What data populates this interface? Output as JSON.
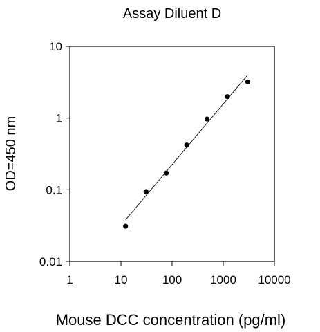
{
  "chart_data": {
    "type": "scatter",
    "title": "Assay Diluent D",
    "xlabel": "Mouse DCC concentration (pg/ml)",
    "ylabel": "OD=450 nm",
    "xscale": "log",
    "yscale": "log",
    "xlim": [
      1,
      10000
    ],
    "ylim": [
      0.01,
      10
    ],
    "xticks": [
      "1",
      "10",
      "100",
      "1000",
      "10000"
    ],
    "yticks": [
      "10",
      "1",
      "0.1",
      "0.01"
    ],
    "grid": false,
    "legend": "none",
    "series": [
      {
        "points": [
          {
            "x": 12.3,
            "y": 0.031
          },
          {
            "x": 30.9,
            "y": 0.094
          },
          {
            "x": 77.2,
            "y": 0.171
          },
          {
            "x": 193,
            "y": 0.42
          },
          {
            "x": 482,
            "y": 0.97
          },
          {
            "x": 1205,
            "y": 1.99
          },
          {
            "x": 3012,
            "y": 3.19
          }
        ],
        "trendline": [
          {
            "x": 12.3,
            "y": 0.038
          },
          {
            "x": 3012,
            "y": 4.0
          }
        ]
      }
    ],
    "colors": {
      "marker": "#000000",
      "line": "#000000",
      "background": "#ffffff"
    }
  }
}
